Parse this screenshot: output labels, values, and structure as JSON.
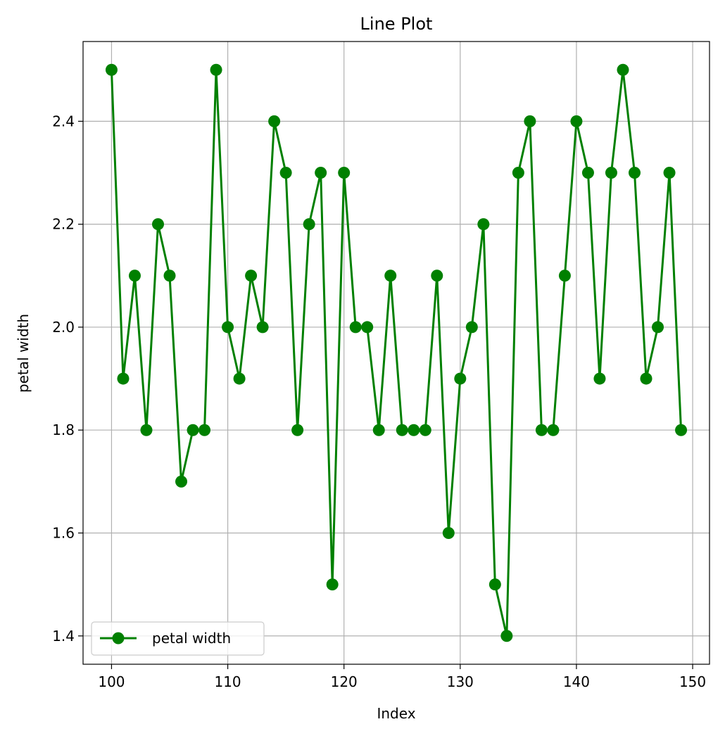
{
  "chart_data": {
    "type": "line",
    "title": "Line Plot",
    "xlabel": "Index",
    "ylabel": "petal width",
    "xlim": [
      97.55,
      151.45
    ],
    "ylim": [
      1.345,
      2.555
    ],
    "xticks": [
      100,
      110,
      120,
      130,
      140,
      150
    ],
    "yticks": [
      1.4,
      1.6,
      1.8,
      2.0,
      2.2,
      2.4
    ],
    "xtick_labels": [
      "100",
      "110",
      "120",
      "130",
      "140",
      "150"
    ],
    "ytick_labels": [
      "1.4",
      "1.6",
      "1.8",
      "2.0",
      "2.2",
      "2.4"
    ],
    "grid": true,
    "legend_position": "lower-left",
    "series": [
      {
        "name": "petal width",
        "color": "#008000",
        "marker": "circle",
        "x": [
          100,
          101,
          102,
          103,
          104,
          105,
          106,
          107,
          108,
          109,
          110,
          111,
          112,
          113,
          114,
          115,
          116,
          117,
          118,
          119,
          120,
          121,
          122,
          123,
          124,
          125,
          126,
          127,
          128,
          129,
          130,
          131,
          132,
          133,
          134,
          135,
          136,
          137,
          138,
          139,
          140,
          141,
          142,
          143,
          144,
          145,
          146,
          147,
          148,
          149
        ],
        "y": [
          2.5,
          1.9,
          2.1,
          1.8,
          2.2,
          2.1,
          1.7,
          1.8,
          1.8,
          2.5,
          2.0,
          1.9,
          2.1,
          2.0,
          2.4,
          2.3,
          1.8,
          2.2,
          2.3,
          1.5,
          2.3,
          2.0,
          2.0,
          1.8,
          2.1,
          1.8,
          1.8,
          1.8,
          2.1,
          1.6,
          1.9,
          2.0,
          2.2,
          1.5,
          1.4,
          2.3,
          2.4,
          1.8,
          1.8,
          2.1,
          2.4,
          2.3,
          1.9,
          2.3,
          2.5,
          2.3,
          1.9,
          2.0,
          2.3,
          1.8
        ]
      }
    ]
  }
}
